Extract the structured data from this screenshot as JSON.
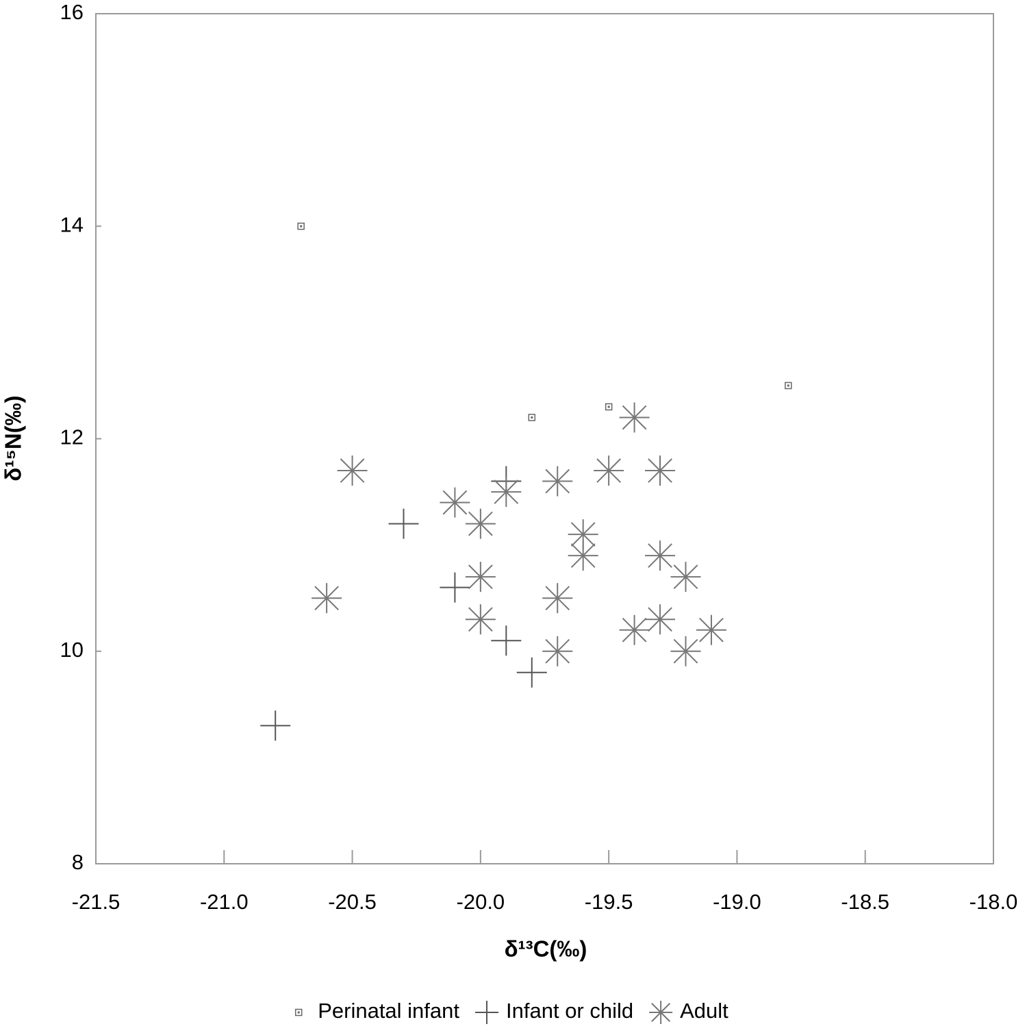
{
  "chart_data": {
    "type": "scatter",
    "x_label": "δ¹³C(‰)",
    "y_label": "δ¹⁵N(‰)",
    "xlim": [
      -21.5,
      -18.0
    ],
    "ylim": [
      8,
      16
    ],
    "xticks": [
      -21.5,
      {
        "value": -21.0,
        "label": "-21.0"
      },
      -20.5,
      {
        "value": -20.0,
        "label": "-20.0"
      },
      -19.5,
      {
        "value": -19.0,
        "label": "-19.0"
      },
      -18.5,
      {
        "value": -18.0,
        "label": "-18.0"
      }
    ],
    "yticks": [
      8,
      10,
      12,
      14,
      16
    ],
    "legend": "bottom",
    "series": [
      {
        "name": "Perinatal infant",
        "marker": "square",
        "color": "#666666",
        "x": [
          -20.7,
          -19.8,
          -19.5,
          -18.8
        ],
        "y": [
          14.0,
          12.2,
          12.3,
          12.5
        ]
      },
      {
        "name": "Infant or child",
        "marker": "plus",
        "color": "#555555",
        "x": [
          -20.8,
          -20.3,
          -20.1,
          -19.9,
          -19.8,
          -19.9,
          -19.3
        ],
        "y": [
          9.3,
          11.2,
          10.6,
          10.1,
          9.8,
          11.6,
          11.7
        ]
      },
      {
        "name": "Adult",
        "marker": "asterisk",
        "color": "#777777",
        "x": [
          -20.6,
          -20.5,
          -20.1,
          -20.0,
          -20.0,
          -20.0,
          -19.9,
          -19.7,
          -19.7,
          -19.7,
          -19.6,
          -19.6,
          -19.5,
          -19.4,
          -19.4,
          -19.3,
          -19.3,
          -19.3,
          -19.2,
          -19.2,
          -19.1
        ],
        "y": [
          10.5,
          11.7,
          11.4,
          11.2,
          10.7,
          10.3,
          11.5,
          11.6,
          10.5,
          10.0,
          11.1,
          10.9,
          11.7,
          12.2,
          10.2,
          11.7,
          10.9,
          10.3,
          10.7,
          10.0,
          10.2
        ]
      }
    ]
  }
}
